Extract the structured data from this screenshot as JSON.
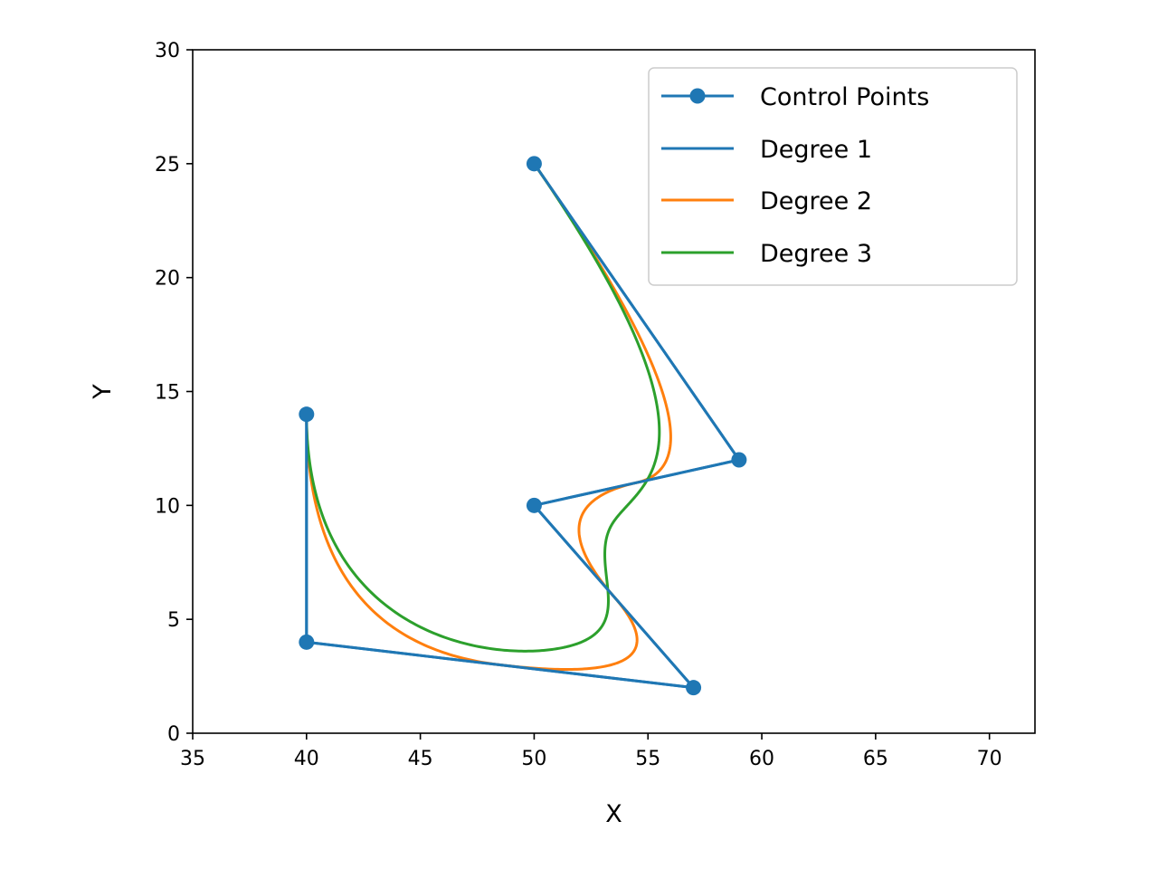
{
  "chart_data": {
    "type": "line",
    "title": "",
    "xlabel": "X",
    "ylabel": "Y",
    "xlim": [
      35,
      72
    ],
    "ylim": [
      0,
      30
    ],
    "xticks": [
      "35",
      "40",
      "45",
      "50",
      "55",
      "60",
      "65",
      "70"
    ],
    "yticks": [
      "0",
      "5",
      "10",
      "15",
      "20",
      "25",
      "30"
    ],
    "grid": false,
    "legend_position": "top-right",
    "colors": {
      "control": "#1f77b4",
      "degree1": "#1f77b4",
      "degree2": "#ff7f0e",
      "degree3": "#2ca02c"
    },
    "control_points": [
      [
        40,
        14
      ],
      [
        40,
        4
      ],
      [
        57,
        2
      ],
      [
        50,
        10
      ],
      [
        59,
        12
      ],
      [
        50,
        25
      ]
    ],
    "series": [
      {
        "name": "Control Points",
        "marker": "circle",
        "color": "#1f77b4"
      },
      {
        "name": "Degree 1",
        "degree": 1,
        "color": "#1f77b4"
      },
      {
        "name": "Degree 2",
        "degree": 2,
        "color": "#ff7f0e"
      },
      {
        "name": "Degree 3",
        "degree": 3,
        "color": "#2ca02c"
      }
    ]
  }
}
